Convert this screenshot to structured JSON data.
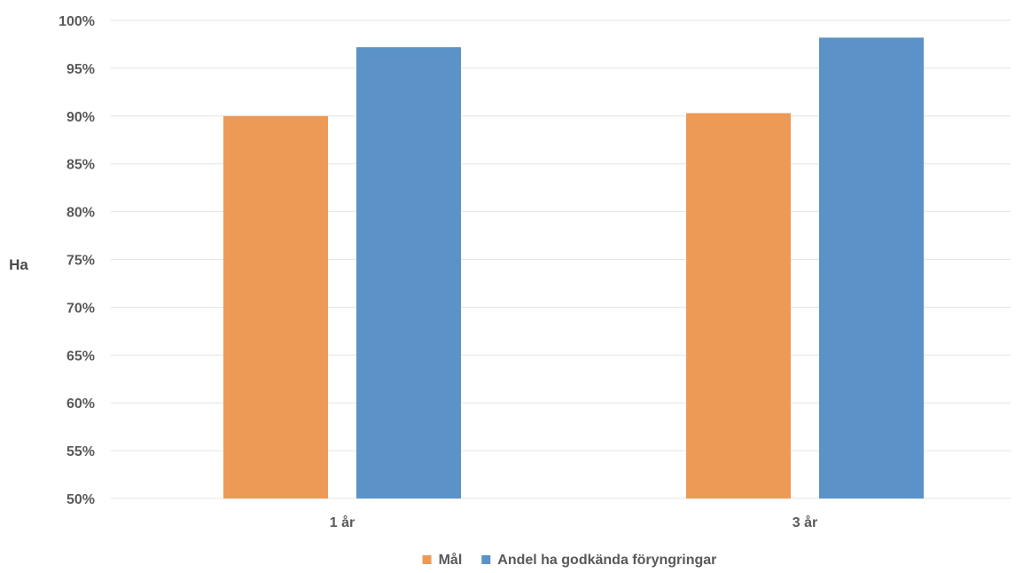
{
  "chart_data": {
    "type": "bar",
    "title": "",
    "xlabel": "",
    "ylabel": "Ha",
    "categories": [
      "1 år",
      "3 år"
    ],
    "series": [
      {
        "name": "Mål",
        "values": [
          90,
          90.3
        ]
      },
      {
        "name": "Andel ha godkända föryngringar",
        "values": [
          97.2,
          98.2
        ]
      }
    ],
    "ylim": [
      50,
      100
    ],
    "yticks": [
      50,
      55,
      60,
      65,
      70,
      75,
      80,
      85,
      90,
      95,
      100
    ],
    "ytick_labels": [
      "50%",
      "55%",
      "60%",
      "65%",
      "70%",
      "75%",
      "80%",
      "85%",
      "90%",
      "95%",
      "100%"
    ],
    "grid": true,
    "legend": "bottom"
  },
  "colors": {
    "series": [
      "#ed9a56",
      "#5b93c8"
    ]
  }
}
